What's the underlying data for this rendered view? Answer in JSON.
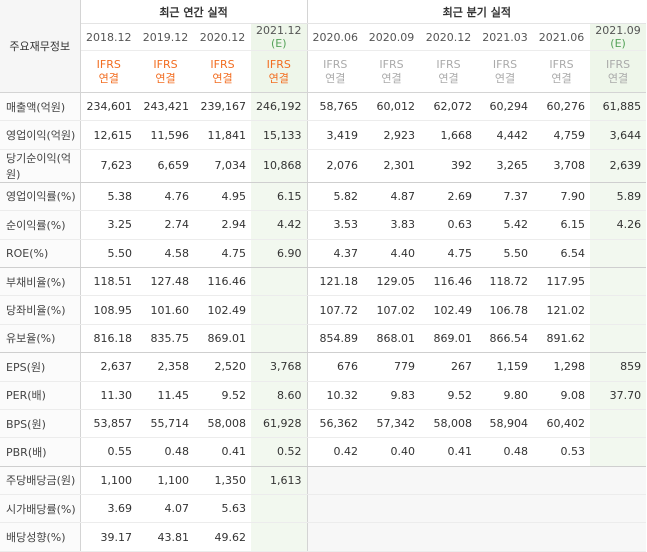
{
  "header": {
    "corner_label": "주요재무정보",
    "annual_group": "최근 연간 실적",
    "quarterly_group": "최근 분기 실적",
    "annual_periods": [
      {
        "label": "2018.12",
        "est": ""
      },
      {
        "label": "2019.12",
        "est": ""
      },
      {
        "label": "2020.12",
        "est": ""
      },
      {
        "label": "2021.12",
        "est": "(E)"
      }
    ],
    "quarterly_periods": [
      {
        "label": "2020.06",
        "est": ""
      },
      {
        "label": "2020.09",
        "est": ""
      },
      {
        "label": "2020.12",
        "est": ""
      },
      {
        "label": "2021.03",
        "est": ""
      },
      {
        "label": "2021.06",
        "est": ""
      },
      {
        "label": "2021.09",
        "est": "(E)"
      }
    ],
    "standard_line1": "IFRS",
    "standard_line2": "연결"
  },
  "rows": [
    {
      "label": "매출액(억원)",
      "values": [
        "234,601",
        "243,421",
        "239,167",
        "246,192",
        "58,765",
        "60,012",
        "62,072",
        "60,294",
        "60,276",
        "61,885"
      ]
    },
    {
      "label": "영업이익(억원)",
      "values": [
        "12,615",
        "11,596",
        "11,841",
        "15,133",
        "3,419",
        "2,923",
        "1,668",
        "4,442",
        "4,759",
        "3,644"
      ]
    },
    {
      "label": "당기순이익(억원)",
      "values": [
        "7,623",
        "6,659",
        "7,034",
        "10,868",
        "2,076",
        "2,301",
        "392",
        "3,265",
        "3,708",
        "2,639"
      ]
    },
    {
      "label": "영업이익률(%)",
      "values": [
        "5.38",
        "4.76",
        "4.95",
        "6.15",
        "5.82",
        "4.87",
        "2.69",
        "7.37",
        "7.90",
        "5.89"
      ]
    },
    {
      "label": "순이익률(%)",
      "values": [
        "3.25",
        "2.74",
        "2.94",
        "4.42",
        "3.53",
        "3.83",
        "0.63",
        "5.42",
        "6.15",
        "4.26"
      ]
    },
    {
      "label": "ROE(%)",
      "values": [
        "5.50",
        "4.58",
        "4.75",
        "6.90",
        "4.37",
        "4.40",
        "4.75",
        "5.50",
        "6.54",
        ""
      ]
    },
    {
      "label": "부채비율(%)",
      "values": [
        "118.51",
        "127.48",
        "116.46",
        "",
        "121.18",
        "129.05",
        "116.46",
        "118.72",
        "117.95",
        ""
      ]
    },
    {
      "label": "당좌비율(%)",
      "values": [
        "108.95",
        "101.60",
        "102.49",
        "",
        "107.72",
        "107.02",
        "102.49",
        "106.78",
        "121.02",
        ""
      ]
    },
    {
      "label": "유보율(%)",
      "values": [
        "816.18",
        "835.75",
        "869.01",
        "",
        "854.89",
        "868.01",
        "869.01",
        "866.54",
        "891.62",
        ""
      ]
    },
    {
      "label": "EPS(원)",
      "values": [
        "2,637",
        "2,358",
        "2,520",
        "3,768",
        "676",
        "779",
        "267",
        "1,159",
        "1,298",
        "859"
      ]
    },
    {
      "label": "PER(배)",
      "values": [
        "11.30",
        "11.45",
        "9.52",
        "8.60",
        "10.32",
        "9.83",
        "9.52",
        "9.80",
        "9.08",
        "37.70"
      ]
    },
    {
      "label": "BPS(원)",
      "values": [
        "53,857",
        "55,714",
        "58,008",
        "61,928",
        "56,362",
        "57,342",
        "58,008",
        "58,904",
        "60,402",
        ""
      ]
    },
    {
      "label": "PBR(배)",
      "values": [
        "0.55",
        "0.48",
        "0.41",
        "0.52",
        "0.42",
        "0.40",
        "0.41",
        "0.48",
        "0.53",
        ""
      ]
    },
    {
      "label": "주당배당금(원)",
      "values": [
        "1,100",
        "1,100",
        "1,350",
        "1,613",
        "",
        "",
        "",
        "",
        "",
        ""
      ]
    },
    {
      "label": "시가배당률(%)",
      "values": [
        "3.69",
        "4.07",
        "5.63",
        "",
        "",
        "",
        "",
        "",
        "",
        ""
      ]
    },
    {
      "label": "배당성향(%)",
      "values": [
        "39.17",
        "43.81",
        "49.62",
        "",
        "",
        "",
        "",
        "",
        "",
        ""
      ]
    }
  ]
}
